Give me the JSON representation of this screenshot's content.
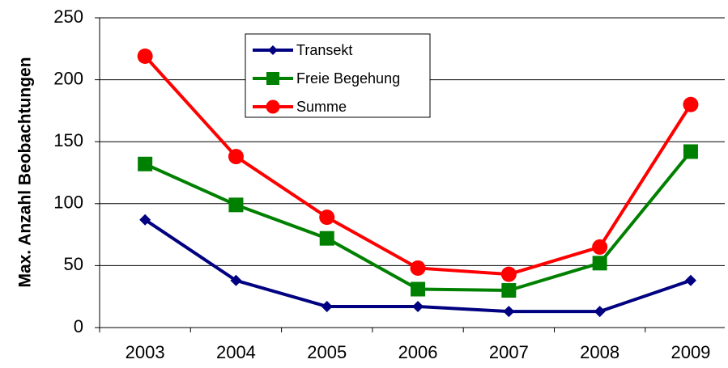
{
  "chart_data": {
    "type": "line",
    "ylabel": "Max. Anzahl Beobachtungen",
    "categories": [
      "2003",
      "2004",
      "2005",
      "2006",
      "2007",
      "2008",
      "2009"
    ],
    "series": [
      {
        "name": "Transekt",
        "color": "#000080",
        "marker": "diamond",
        "values": [
          87,
          38,
          17,
          17,
          13,
          13,
          38
        ]
      },
      {
        "name": "Freie Begehung",
        "color": "#008000",
        "marker": "square",
        "values": [
          132,
          99,
          72,
          31,
          30,
          52,
          142
        ]
      },
      {
        "name": "Summe",
        "color": "#ff0000",
        "marker": "circle",
        "values": [
          219,
          138,
          89,
          48,
          43,
          65,
          180
        ]
      }
    ],
    "ylim": [
      0,
      250
    ],
    "yticks": [
      0,
      50,
      100,
      150,
      200,
      250
    ],
    "grid": true
  }
}
